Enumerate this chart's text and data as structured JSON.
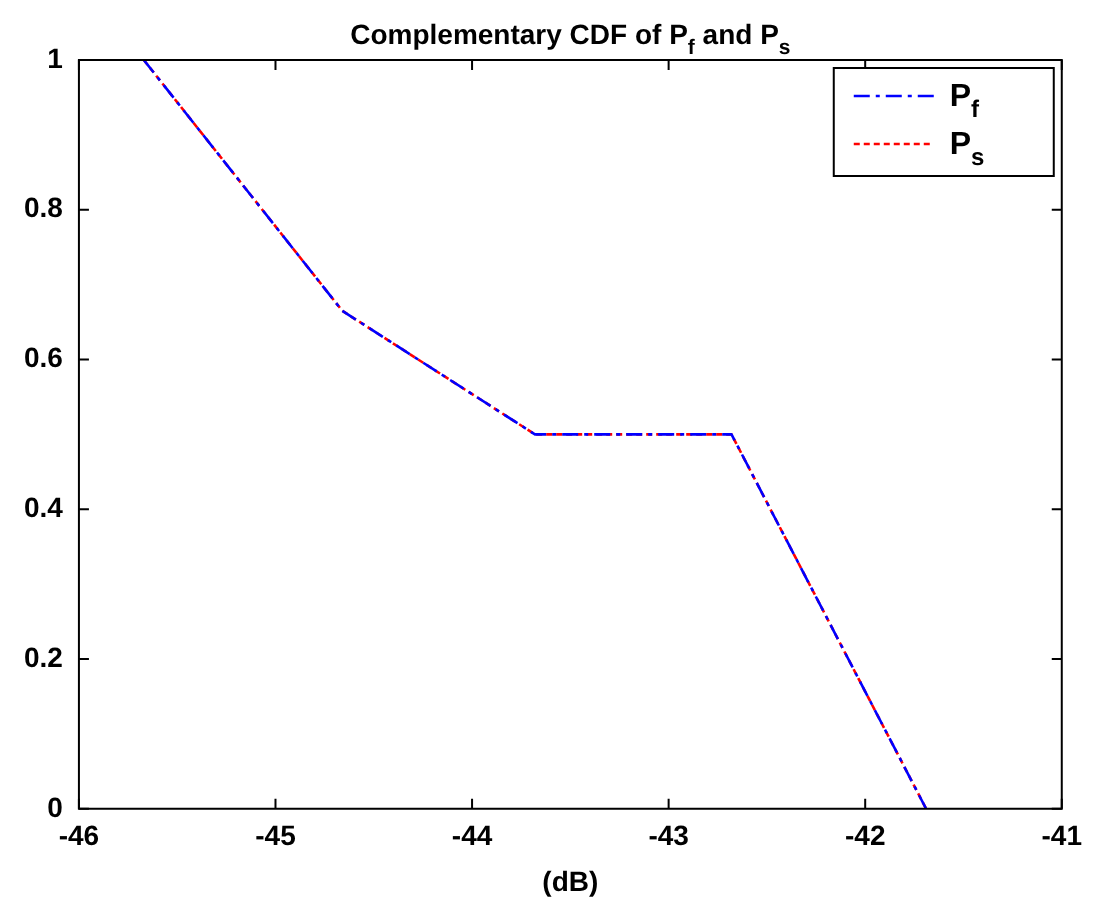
{
  "chart_data": {
    "type": "line",
    "title": "Complementary CDF of P$_{f}$ and P$_{s}$",
    "xlabel": "(dB)",
    "x": [
      -45.67,
      -44.66,
      -43.68,
      -42.68,
      -41.69
    ],
    "series": [
      {
        "name": "P$_{f}$",
        "color": "#0000ff",
        "line_style": "dashed",
        "values": [
          1,
          0.665,
          0.5,
          0.5,
          0
        ]
      },
      {
        "name": "P$_{s}$",
        "color": "#ff0000",
        "line_style": "dotted",
        "values": [
          1,
          0.665,
          0.5,
          0.5,
          0
        ]
      }
    ],
    "xlim": [
      -46,
      -41
    ],
    "xticks": [
      -46,
      -45,
      -44,
      -43,
      -42,
      -41
    ],
    "ylim": [
      0,
      1
    ],
    "yticks": [
      0,
      0.2,
      0.4,
      0.6,
      0.8,
      1
    ],
    "grid": false,
    "legend": "top right",
    "marker": "none"
  }
}
